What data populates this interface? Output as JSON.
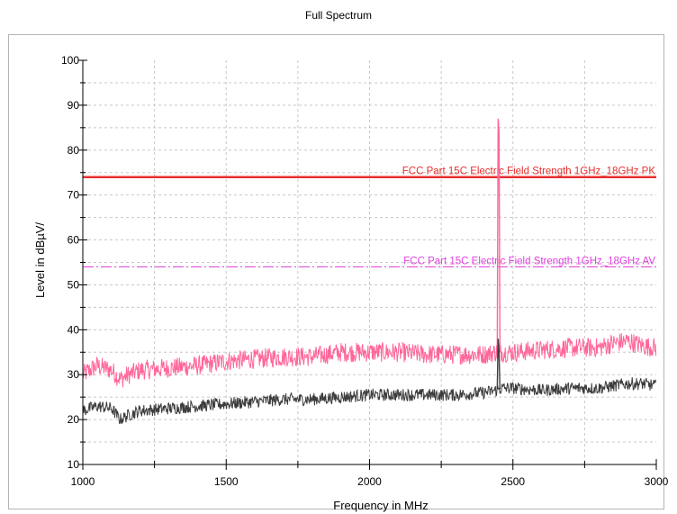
{
  "chart_data": {
    "type": "line",
    "title": "Full Spectrum",
    "xlabel": "Frequency in MHz",
    "ylabel": "Level in dBµV/",
    "xlim": [
      1000,
      3000
    ],
    "ylim": [
      10,
      100
    ],
    "x_ticks": [
      "1000",
      "1500",
      "2000",
      "2500",
      "3000"
    ],
    "y_ticks": [
      "10",
      "20",
      "30",
      "40",
      "50",
      "60",
      "70",
      "80",
      "90",
      "100"
    ],
    "grid": true,
    "limit_lines": [
      {
        "label": "FCC Part 15C Electric Field Strength 1GHz_18GHz PK",
        "value": 74,
        "color": "#e8302e",
        "style": "solid"
      },
      {
        "label": "FCC Part 15C Electric Field Strength 1GHz_18GHz AV",
        "value": 54,
        "color": "#e040e0",
        "style": "dashdot"
      }
    ],
    "series": [
      {
        "color": "#ff6699",
        "x": [
          1000,
          1050,
          1100,
          1130,
          1160,
          1200,
          1300,
          1400,
          1500,
          1600,
          1700,
          1800,
          1900,
          2000,
          2100,
          2200,
          2300,
          2400,
          2440,
          2450,
          2460,
          2500,
          2600,
          2700,
          2800,
          2850,
          2900,
          2950,
          3000
        ],
        "values": [
          30,
          32,
          31,
          29,
          30,
          31,
          31.5,
          32,
          33,
          33.5,
          34,
          34,
          35,
          35,
          35,
          34.5,
          34.5,
          34.5,
          35,
          87,
          35,
          35,
          35.5,
          36,
          36,
          37,
          37.5,
          36.5,
          36
        ]
      },
      {
        "color": "#3c3c3c",
        "x": [
          1000,
          1050,
          1100,
          1130,
          1160,
          1200,
          1300,
          1400,
          1500,
          1600,
          1700,
          1800,
          1900,
          2000,
          2100,
          2200,
          2300,
          2400,
          2440,
          2450,
          2460,
          2500,
          2600,
          2700,
          2800,
          2850,
          2900,
          2950,
          3000
        ],
        "values": [
          22,
          23,
          22.5,
          20,
          21,
          22,
          22.5,
          23,
          23.5,
          24,
          24.5,
          24.5,
          25,
          25.5,
          25.5,
          25.5,
          25.5,
          26,
          26.5,
          38,
          27,
          27,
          26.5,
          27,
          27,
          27.5,
          28,
          28,
          27.5
        ]
      }
    ]
  }
}
